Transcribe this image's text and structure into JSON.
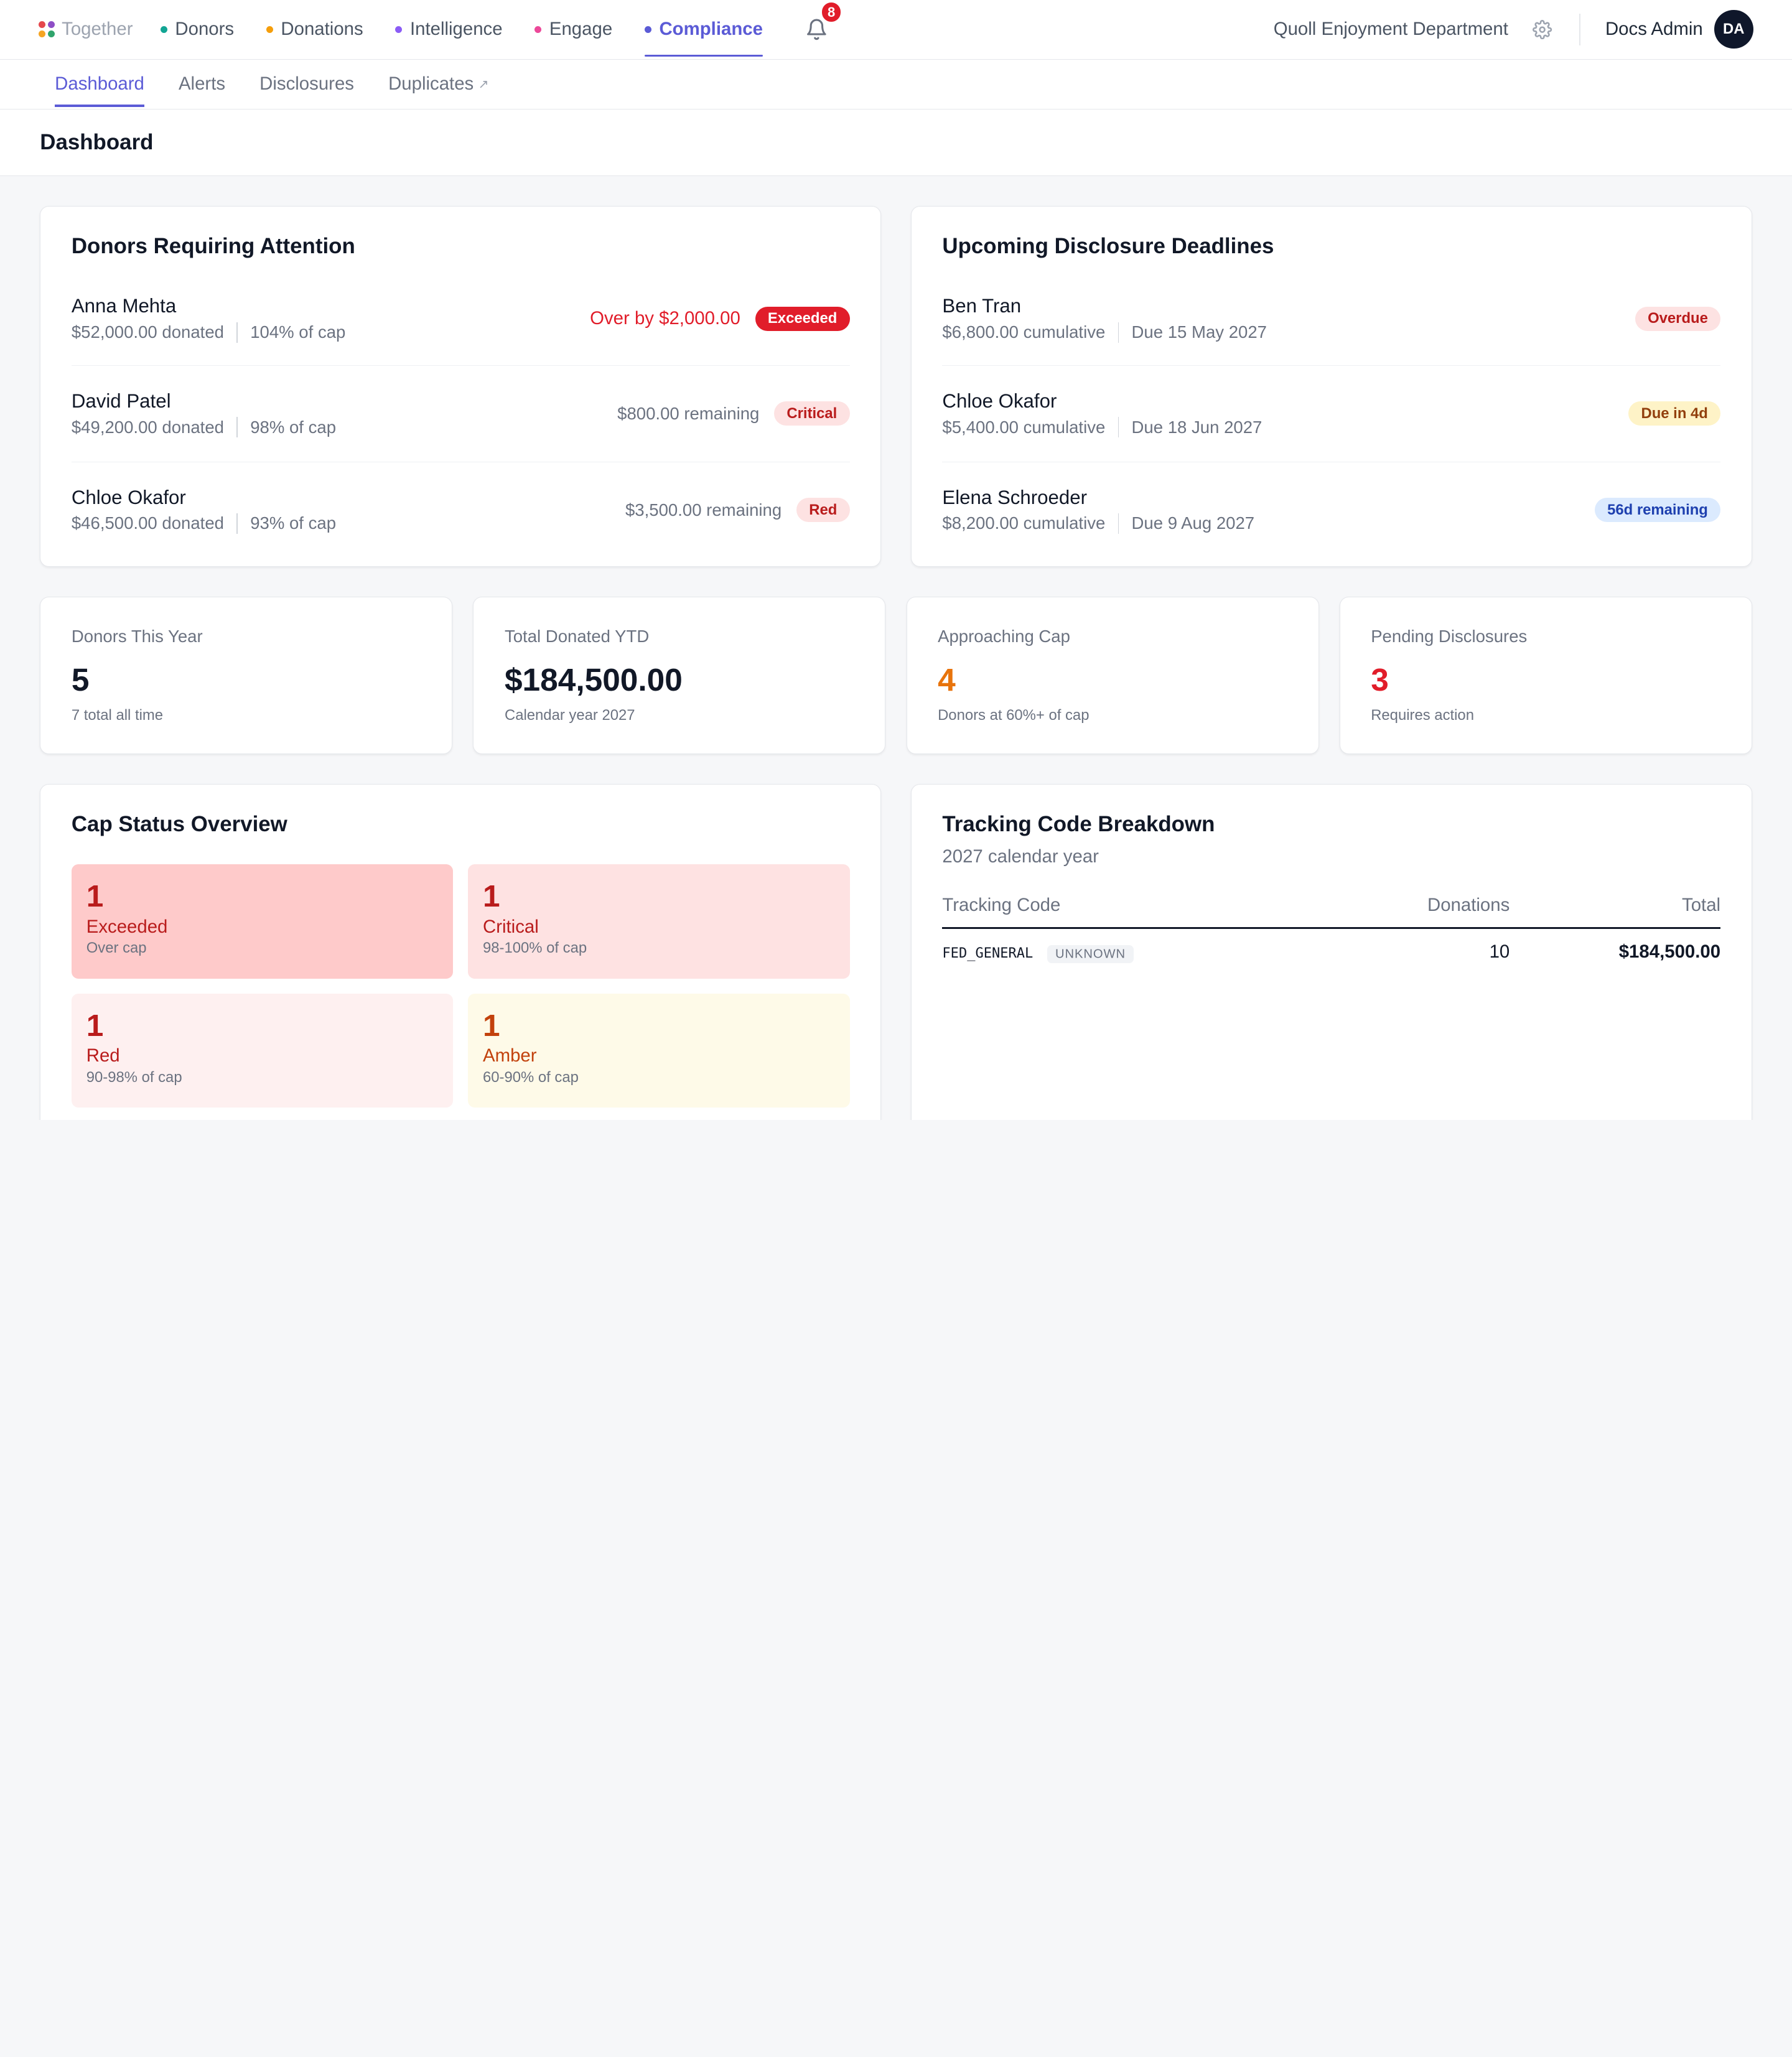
{
  "brand": {
    "name": "Together",
    "dot_colors": [
      "#e5484d",
      "#8e4ec6",
      "#f5a524",
      "#30a46c"
    ]
  },
  "nav": {
    "items": [
      {
        "label": "Donors",
        "dot": "#12a594"
      },
      {
        "label": "Donations",
        "dot": "#f59e0b"
      },
      {
        "label": "Intelligence",
        "dot": "#8b5cf6"
      },
      {
        "label": "Engage",
        "dot": "#ec4899"
      },
      {
        "label": "Compliance",
        "dot": "#5b5bd6"
      }
    ],
    "active": "Compliance",
    "notification_count": "8",
    "bell_icon": "bell-icon"
  },
  "header": {
    "org_name": "Quoll Enjoyment Department",
    "settings_icon": "gear-icon",
    "user_name": "Docs Admin",
    "user_initials": "DA"
  },
  "subnav": {
    "items": [
      "Dashboard",
      "Alerts",
      "Disclosures",
      "Duplicates"
    ],
    "active": "Dashboard",
    "external_icon": "↗"
  },
  "page": {
    "title": "Dashboard"
  },
  "attention": {
    "title": "Donors Requiring Attention",
    "rows": [
      {
        "name": "Anna Mehta",
        "donated": "$52,000.00 donated",
        "pct": "104% of cap",
        "status_text": "Over by $2,000.00",
        "badge": "Exceeded"
      },
      {
        "name": "David Patel",
        "donated": "$49,200.00 donated",
        "pct": "98% of cap",
        "status_text": "$800.00 remaining",
        "badge": "Critical"
      },
      {
        "name": "Chloe Okafor",
        "donated": "$46,500.00 donated",
        "pct": "93% of cap",
        "status_text": "$3,500.00 remaining",
        "badge": "Red"
      }
    ]
  },
  "deadlines": {
    "title": "Upcoming Disclosure Deadlines",
    "rows": [
      {
        "name": "Ben Tran",
        "cumulative": "$6,800.00 cumulative",
        "due": "Due 15 May 2027",
        "badge": "Overdue"
      },
      {
        "name": "Chloe Okafor",
        "cumulative": "$5,400.00 cumulative",
        "due": "Due 18 Jun 2027",
        "badge": "Due in 4d"
      },
      {
        "name": "Elena Schroeder",
        "cumulative": "$8,200.00 cumulative",
        "due": "Due 9 Aug 2027",
        "badge": "56d remaining"
      }
    ]
  },
  "stats": [
    {
      "label": "Donors This Year",
      "value": "5",
      "sub": "7 total all time",
      "color": "#111827"
    },
    {
      "label": "Total Donated YTD",
      "value": "$184,500.00",
      "sub": "Calendar year 2027",
      "color": "#111827"
    },
    {
      "label": "Approaching Cap",
      "value": "4",
      "sub": "Donors at 60%+ of cap",
      "color": "#e8740c"
    },
    {
      "label": "Pending Disclosures",
      "value": "3",
      "sub": "Requires action",
      "color": "#e11d2a"
    }
  ],
  "cap_status": {
    "title": "Cap Status Overview",
    "tiles": [
      {
        "count": "1",
        "name": "Exceeded",
        "sub": "Over cap",
        "bg": "#fecaca",
        "fg": "#b91c1c"
      },
      {
        "count": "1",
        "name": "Critical",
        "sub": "98-100% of cap",
        "bg": "#fee2e2",
        "fg": "#b91c1c"
      },
      {
        "count": "1",
        "name": "Red",
        "sub": "90-98% of cap",
        "bg": "#fef0f0",
        "fg": "#b91c1c"
      },
      {
        "count": "1",
        "name": "Amber",
        "sub": "60-90% of cap",
        "bg": "#fefae8",
        "fg": "#c2410c"
      }
    ]
  },
  "tracking": {
    "title": "Tracking Code Breakdown",
    "subtitle": "2027 calendar year",
    "columns": [
      "Tracking Code",
      "Donations",
      "Total"
    ],
    "rows": [
      {
        "code": "FED_GENERAL",
        "tag": "UNKNOWN",
        "donations": "10",
        "total": "$184,500.00"
      }
    ]
  }
}
